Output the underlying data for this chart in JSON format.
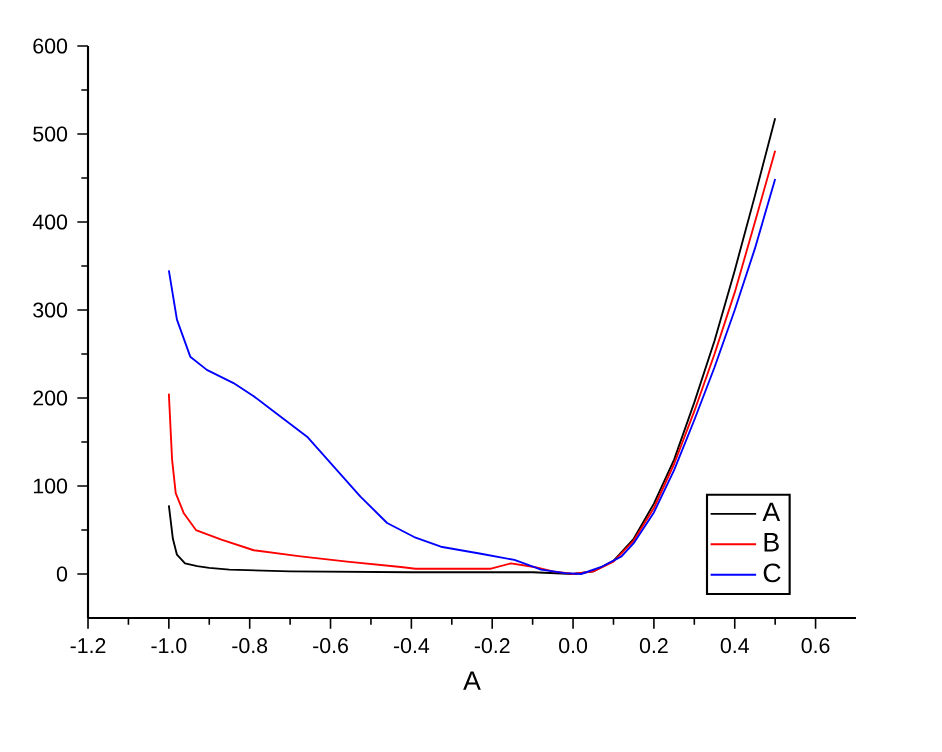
{
  "chart_data": {
    "type": "line",
    "xlabel": "A",
    "xlim": [
      -1.2,
      0.7
    ],
    "ylim": [
      -50,
      600
    ],
    "xticks": [
      -1.2,
      {
        "value": -1,
        "label": "-1.0"
      },
      -0.8,
      -0.6,
      -0.4,
      -0.2,
      {
        "value": 0,
        "label": "0.0"
      },
      0.2,
      0.4,
      0.6
    ],
    "yticks": [
      0,
      100,
      200,
      300,
      400,
      500,
      600
    ],
    "legend": "bottom right",
    "marker": "none",
    "line_style": "solid",
    "series": [
      {
        "name": "A",
        "color": "#000000",
        "x": [
          -1.0,
          -0.99,
          -0.98,
          -0.96,
          -0.93,
          -0.9,
          -0.85,
          -0.7,
          -0.4,
          -0.1,
          0.0,
          0.05,
          0.1,
          0.15,
          0.2,
          0.25,
          0.3,
          0.35,
          0.4,
          0.45,
          0.5
        ],
        "values": [
          78,
          40,
          22,
          12,
          9,
          7,
          5,
          3,
          2,
          2,
          0,
          3,
          15,
          40,
          80,
          130,
          195,
          265,
          345,
          430,
          518
        ]
      },
      {
        "name": "B",
        "color": "#ff0000",
        "x": [
          -1.0,
          -0.992,
          -0.983,
          -0.963,
          -0.933,
          -0.87,
          -0.79,
          -0.674,
          -0.559,
          -0.426,
          -0.39,
          -0.203,
          -0.154,
          -0.096,
          -0.05,
          0.0,
          0.05,
          0.1,
          0.15,
          0.2,
          0.25,
          0.3,
          0.35,
          0.4,
          0.45,
          0.5
        ],
        "values": [
          205,
          130,
          92,
          69,
          50,
          39,
          27,
          20,
          14,
          8,
          6,
          6,
          12,
          8,
          3,
          0,
          3,
          14,
          38,
          75,
          125,
          185,
          250,
          320,
          400,
          481
        ]
      },
      {
        "name": "C",
        "color": "#0000ff",
        "x": [
          -1.0,
          -0.98,
          -0.947,
          -0.906,
          -0.84,
          -0.79,
          -0.724,
          -0.658,
          -0.592,
          -0.526,
          -0.46,
          -0.393,
          -0.327,
          -0.228,
          -0.145,
          -0.079,
          -0.02,
          0.02,
          0.07,
          0.12,
          0.15,
          0.2,
          0.25,
          0.3,
          0.35,
          0.4,
          0.45,
          0.5
        ],
        "values": [
          345,
          289,
          247,
          232,
          217,
          202,
          179,
          156,
          122,
          88,
          58,
          42,
          31,
          23,
          16,
          5,
          1,
          0,
          8,
          20,
          35,
          70,
          118,
          175,
          235,
          300,
          370,
          449
        ]
      }
    ]
  }
}
